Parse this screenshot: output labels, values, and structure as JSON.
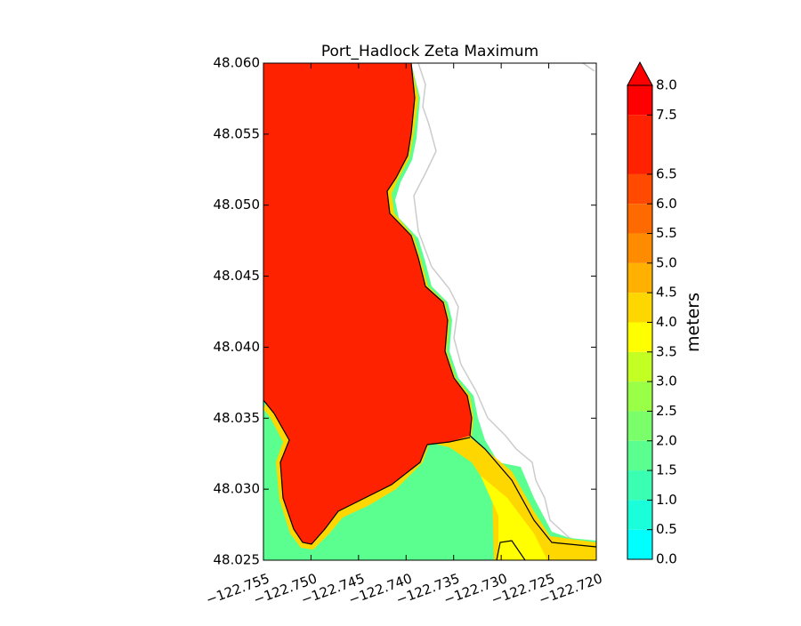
{
  "chart_data": {
    "type": "contour-map",
    "title": "Port_Hadlock Zeta Maximum",
    "xlim": [
      -122.755,
      -122.72
    ],
    "ylim": [
      48.025,
      48.06
    ],
    "xticks": [
      {
        "value": -122.755,
        "label": "−122.755"
      },
      {
        "value": -122.75,
        "label": "−122.750"
      },
      {
        "value": -122.745,
        "label": "−122.745"
      },
      {
        "value": -122.74,
        "label": "−122.740"
      },
      {
        "value": -122.735,
        "label": "−122.735"
      },
      {
        "value": -122.73,
        "label": "−122.730"
      },
      {
        "value": -122.725,
        "label": "−122.725"
      },
      {
        "value": -122.72,
        "label": "−122.720"
      }
    ],
    "yticks": [
      48.025,
      {
        "value": 48.03,
        "label": "48.030"
      },
      48.035,
      {
        "value": 48.04,
        "label": "48.040"
      },
      48.045,
      {
        "value": 48.05,
        "label": "48.050"
      },
      48.055,
      {
        "value": 48.06,
        "label": "48.060"
      }
    ],
    "colorbar": {
      "label": "meters",
      "extend": "max",
      "ticks": [
        {
          "value": 0,
          "label": "0.0"
        },
        0.5,
        {
          "value": 1,
          "label": "1.0"
        },
        1.5,
        {
          "value": 2,
          "label": "2.0"
        },
        2.5,
        {
          "value": 3,
          "label": "3.0"
        },
        3.5,
        {
          "value": 4,
          "label": "4.0"
        },
        4.5,
        {
          "value": 5,
          "label": "5.0"
        },
        5.5,
        {
          "value": 6,
          "label": "6.0"
        },
        6.5,
        7.5,
        {
          "value": 8,
          "label": "8.0"
        }
      ],
      "colors": [
        "#00ffff",
        "#1affd9",
        "#3affb3",
        "#5aff8f",
        "#7aff6b",
        "#9aff47",
        "#c4ff24",
        "#ffff00",
        "#ffd700",
        "#ffb000",
        "#ff8c00",
        "#ff6a00",
        "#ff4a00",
        "#ff2200",
        "#ff0000"
      ]
    }
  }
}
